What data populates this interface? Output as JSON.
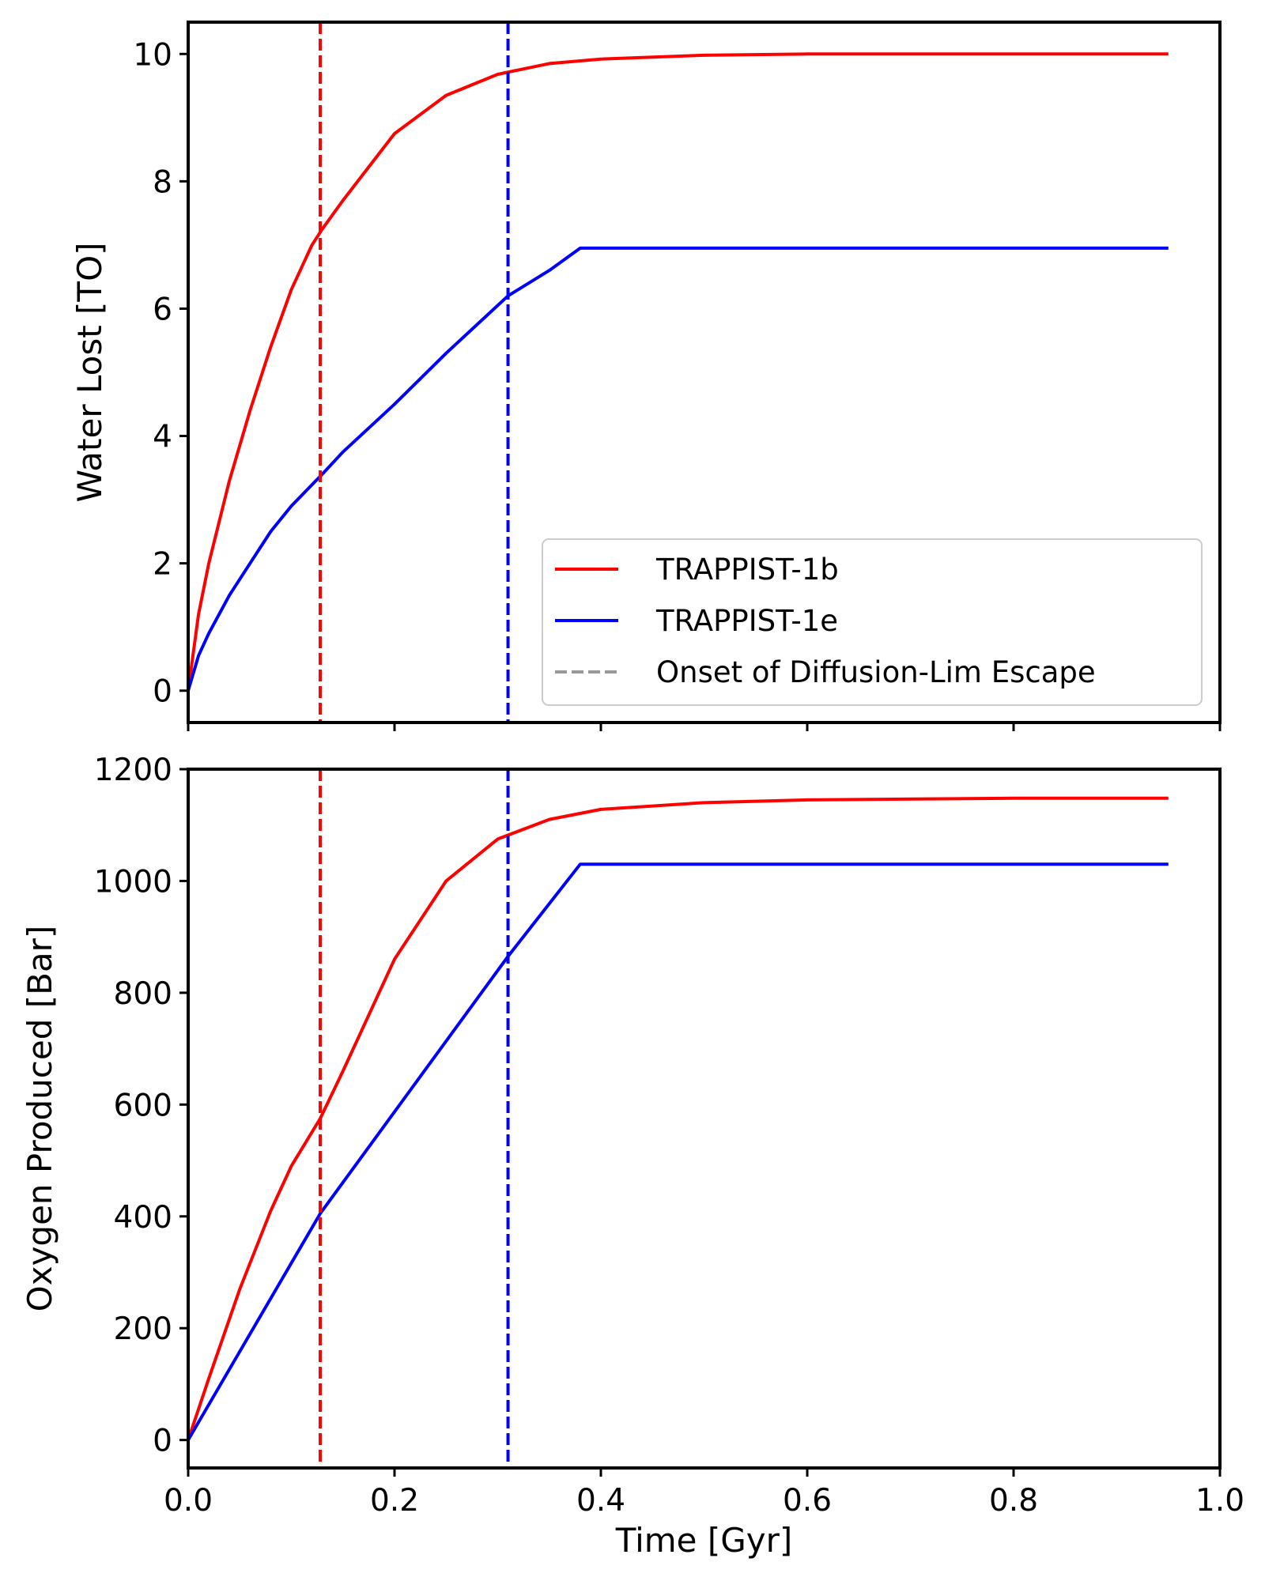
{
  "chart_data": [
    {
      "type": "line",
      "panel": "top",
      "ylabel": "Water Lost [TO]",
      "xlabel": "",
      "xlim": [
        0.0,
        1.0
      ],
      "ylim": [
        -0.5,
        10.5
      ],
      "xticks": [
        0.0,
        0.2,
        0.4,
        0.6,
        0.8,
        1.0
      ],
      "yticks": [
        0,
        2,
        4,
        6,
        8,
        10
      ],
      "show_xtick_labels": false,
      "grid": false,
      "series": [
        {
          "name": "TRAPPIST-1b",
          "color": "#ff0000",
          "x": [
            0,
            0.01,
            0.02,
            0.04,
            0.06,
            0.08,
            0.1,
            0.12,
            0.13,
            0.15,
            0.2,
            0.25,
            0.3,
            0.35,
            0.4,
            0.5,
            0.6,
            0.7,
            0.8,
            0.95
          ],
          "y": [
            0,
            1.2,
            2.0,
            3.3,
            4.4,
            5.4,
            6.3,
            7.0,
            7.25,
            7.7,
            8.75,
            9.35,
            9.68,
            9.85,
            9.92,
            9.98,
            10.0,
            10.0,
            10.0,
            10.0
          ]
        },
        {
          "name": "TRAPPIST-1e",
          "color": "#0000ff",
          "x": [
            0,
            0.01,
            0.02,
            0.04,
            0.06,
            0.08,
            0.1,
            0.13,
            0.15,
            0.2,
            0.25,
            0.3,
            0.31,
            0.35,
            0.38,
            0.5,
            0.6,
            0.8,
            0.95
          ],
          "y": [
            0,
            0.55,
            0.9,
            1.5,
            2.0,
            2.5,
            2.9,
            3.4,
            3.75,
            4.5,
            5.3,
            6.05,
            6.2,
            6.6,
            6.95,
            6.95,
            6.95,
            6.95,
            6.95
          ]
        }
      ],
      "vlines": [
        {
          "x": 0.128,
          "color": "#ff0000",
          "style": "dashed"
        },
        {
          "x": 0.31,
          "color": "#0000ff",
          "style": "dashed"
        }
      ],
      "legend": {
        "placement": "lower-right",
        "entries": [
          {
            "label": "TRAPPIST-1b",
            "color": "#ff0000",
            "style": "solid"
          },
          {
            "label": "TRAPPIST-1e",
            "color": "#0000ff",
            "style": "solid"
          },
          {
            "label": "Onset of Diffusion-Lim Escape",
            "color": "#999999",
            "style": "dashed"
          }
        ]
      }
    },
    {
      "type": "line",
      "panel": "bottom",
      "ylabel": "Oxygen Produced [Bar]",
      "xlabel": "Time [Gyr]",
      "xlim": [
        0.0,
        1.0
      ],
      "ylim": [
        -50,
        1200
      ],
      "xticks": [
        0.0,
        0.2,
        0.4,
        0.6,
        0.8,
        1.0
      ],
      "yticks": [
        0,
        200,
        400,
        600,
        800,
        1000,
        1200
      ],
      "show_xtick_labels": true,
      "grid": false,
      "series": [
        {
          "name": "TRAPPIST-1b",
          "color": "#ff0000",
          "x": [
            0,
            0.02,
            0.05,
            0.08,
            0.1,
            0.128,
            0.15,
            0.2,
            0.25,
            0.3,
            0.35,
            0.4,
            0.5,
            0.6,
            0.8,
            0.95
          ],
          "y": [
            0,
            110,
            270,
            410,
            490,
            575,
            660,
            860,
            1000,
            1075,
            1110,
            1128,
            1140,
            1145,
            1148,
            1148
          ]
        },
        {
          "name": "TRAPPIST-1e",
          "color": "#0000ff",
          "x": [
            0,
            0.128,
            0.31,
            0.38,
            0.5,
            0.6,
            0.8,
            0.95
          ],
          "y": [
            0,
            405,
            865,
            1030,
            1030,
            1030,
            1030,
            1030
          ]
        }
      ],
      "vlines": [
        {
          "x": 0.128,
          "color": "#ff0000",
          "style": "dashed"
        },
        {
          "x": 0.31,
          "color": "#0000ff",
          "style": "dashed"
        }
      ]
    }
  ]
}
